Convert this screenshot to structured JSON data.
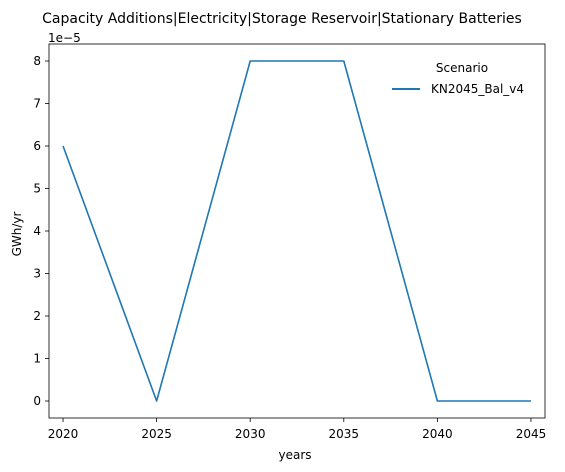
{
  "chart_data": {
    "type": "line",
    "title": "Capacity Additions|Electricity|Storage Reservoir|Stationary Batteries",
    "xlabel": "years",
    "ylabel": "GWh/yr",
    "y_offset_label": "1e−5",
    "xlim": [
      2019.25,
      2045.75
    ],
    "ylim": [
      -0.4,
      8.4
    ],
    "xticks": [
      2020,
      2025,
      2030,
      2035,
      2040,
      2045
    ],
    "xtick_labels": [
      "2020",
      "2025",
      "2030",
      "2035",
      "2040",
      "2045"
    ],
    "yticks": [
      0,
      1,
      2,
      3,
      4,
      5,
      6,
      7,
      8
    ],
    "ytick_labels": [
      "0",
      "1",
      "2",
      "3",
      "4",
      "5",
      "6",
      "7",
      "8"
    ],
    "grid": false,
    "legend": {
      "title": "Scenario",
      "placement": "top-right"
    },
    "series": [
      {
        "name": "KN2045_Bal_v4",
        "color": "#1f77b4",
        "x": [
          2020,
          2025,
          2030,
          2035,
          2040,
          2045
        ],
        "y": [
          6,
          0,
          8,
          8,
          0,
          0
        ]
      }
    ]
  }
}
